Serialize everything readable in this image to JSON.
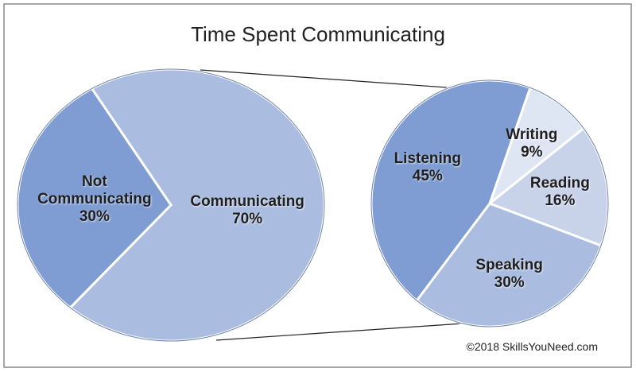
{
  "chart_data": [
    {
      "type": "pie",
      "title": "Time Spent Communicating",
      "categories": [
        "Communicating",
        "Not Communicating"
      ],
      "values": [
        70,
        30
      ],
      "value_labels": [
        "70%",
        "30%"
      ],
      "colors": [
        "#aabde0",
        "#7f9dd2"
      ]
    },
    {
      "type": "pie",
      "categories": [
        "Writing",
        "Reading",
        "Speaking",
        "Listening"
      ],
      "values": [
        9,
        16,
        30,
        45
      ],
      "value_labels": [
        "9%",
        "16%",
        "30%",
        "45%"
      ],
      "colors": [
        "#dfe6f3",
        "#c8d3ea",
        "#aabde0",
        "#7f9dd2"
      ]
    }
  ],
  "credit": "©2018 SkillsYouNeed.com"
}
